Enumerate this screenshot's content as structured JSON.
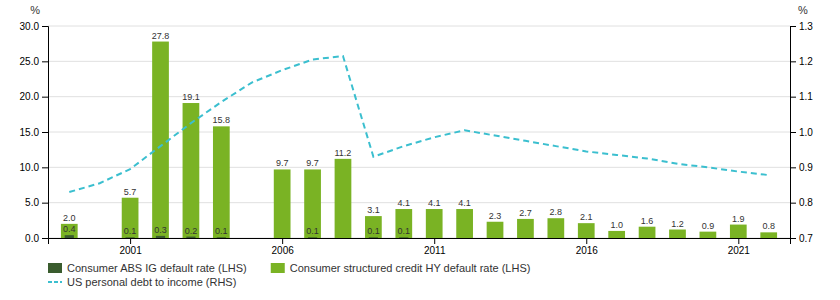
{
  "chart_data": {
    "type": "bar",
    "ylabel": "%",
    "y2label": "%",
    "xlim": [
      1998.3,
      2022.7
    ],
    "xticks": [
      2001,
      2006,
      2011,
      2016,
      2021
    ],
    "ylim": [
      0.0,
      30.0
    ],
    "yticks": [
      {
        "value": 0.0,
        "label": "0.0"
      },
      {
        "value": 5.0,
        "label": "5.0"
      },
      {
        "value": 10.0,
        "label": "10.0"
      },
      {
        "value": 15.0,
        "label": "15.0"
      },
      {
        "value": 20.0,
        "label": "20.0"
      },
      {
        "value": 25.0,
        "label": "25.0"
      },
      {
        "value": 30.0,
        "label": "30.0"
      }
    ],
    "y2lim": [
      0.7,
      1.3
    ],
    "y2ticks": [
      0.7,
      0.8,
      0.9,
      {
        "value": 1.0,
        "label": "1.0"
      },
      1.1,
      1.2,
      1.3
    ],
    "grid": true,
    "legend": "bottom",
    "series": [
      {
        "name": "Consumer ABS IG default rate (LHS)",
        "type": "bar",
        "color": "#3a5c2e",
        "data_labels": true,
        "x": [
          1999,
          2001,
          2002,
          2003,
          2004,
          2007,
          2009,
          2010
        ],
        "values": [
          0.4,
          0.1,
          0.3,
          0.2,
          0.1,
          0.1,
          0.1,
          0.1
        ]
      },
      {
        "name": "Consumer structured credit HY default rate (LHS)",
        "type": "bar",
        "color": "#7ab324",
        "data_labels": true,
        "x": [
          1999,
          2001,
          2002,
          2003,
          2004,
          2006,
          2007,
          2008,
          2009,
          2010,
          2011,
          2012,
          2013,
          2014,
          2015,
          2016,
          2017,
          2018,
          2019,
          2020,
          2021,
          2022
        ],
        "values": [
          2.0,
          5.7,
          27.8,
          19.1,
          15.8,
          9.7,
          9.7,
          11.2,
          3.1,
          4.1,
          4.1,
          4.1,
          2.3,
          2.7,
          2.8,
          2.1,
          1.0,
          1.6,
          1.2,
          0.9,
          1.9,
          0.8
        ],
        "value_labels": [
          "2.0",
          "5.7",
          "27.8",
          "19.1",
          "15.8",
          "9.7",
          "9.7",
          "11.2",
          "3.1",
          "4.1",
          "4.1",
          "4.1",
          "2.3",
          "2.7",
          "2.8",
          "2.1",
          "1.0",
          "1.6",
          "1.2",
          "0.9",
          "1.9",
          "0.8"
        ]
      },
      {
        "name": "US personal debt to income (RHS)",
        "type": "line",
        "axis": "y2",
        "color": "#3bbfcf",
        "line_style": "dashed",
        "x": [
          1999,
          2000,
          2001,
          2002,
          2003,
          2004,
          2005,
          2006,
          2007,
          2008,
          2009,
          2010,
          2011,
          2012,
          2013,
          2014,
          2015,
          2016,
          2017,
          2018,
          2019,
          2020,
          2021,
          2022
        ],
        "values": [
          0.83,
          0.855,
          0.895,
          0.96,
          1.025,
          1.085,
          1.14,
          1.175,
          1.205,
          1.215,
          0.93,
          0.96,
          0.985,
          1.005,
          0.99,
          0.975,
          0.96,
          0.945,
          0.935,
          0.925,
          0.91,
          0.9,
          0.888,
          0.878
        ]
      }
    ]
  }
}
